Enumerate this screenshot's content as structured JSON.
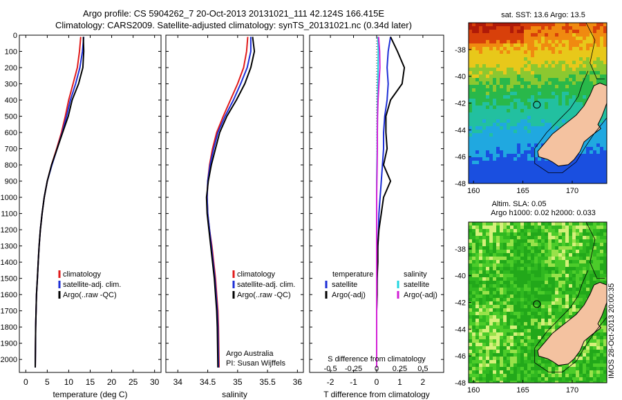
{
  "header": {
    "line1": "Argo profile: CS 5904262_7 20-Oct-2013 20131021_111 42.124S 166.415E",
    "line2": "Climatology: CARS2009. Satellite-adjusted climatology: synTS_20131021.nc (0.34d later)"
  },
  "colors": {
    "climatology": "#e01a1a",
    "satellite": "#1c2ed6",
    "argo": "#000000",
    "salinity_sat": "#22d6e0",
    "salinity_argo": "#d21fd6"
  },
  "chart_data": [
    {
      "type": "line",
      "name": "temperature",
      "xlabel": "temperature (deg C)",
      "ylabel": "",
      "xlim": [
        -1.5,
        31.5
      ],
      "ylim": [
        0,
        2080
      ],
      "xticks": [
        0,
        5,
        10,
        15,
        20,
        25,
        30
      ],
      "yticks": [
        0,
        100,
        200,
        300,
        400,
        500,
        600,
        700,
        800,
        900,
        1000,
        1100,
        1200,
        1300,
        1400,
        1500,
        1600,
        1700,
        1800,
        1900,
        2000
      ],
      "legend": [
        "climatology",
        "satellite-adj. clim.",
        "Argo(..raw -QC)"
      ],
      "legend_position": "lower-center",
      "series": [
        {
          "name": "climatology",
          "x": [
            12.8,
            12.5,
            12.0,
            11.0,
            10.0,
            9.2,
            8.3,
            7.2,
            6.0,
            5.0,
            4.3,
            3.8,
            3.4,
            3.1,
            2.9,
            2.7,
            2.5,
            2.4,
            2.3,
            2.2
          ],
          "y": [
            10,
            100,
            200,
            300,
            400,
            500,
            600,
            700,
            800,
            900,
            1000,
            1100,
            1200,
            1300,
            1400,
            1500,
            1600,
            1700,
            1800,
            2050
          ]
        },
        {
          "name": "satellite-adj. clim.",
          "x": [
            13.5,
            13.2,
            12.6,
            11.6,
            10.4,
            9.5,
            8.5,
            7.3,
            6.1,
            5.0,
            4.3,
            3.8,
            3.4,
            3.1,
            2.9,
            2.7,
            2.5,
            2.4,
            2.3,
            2.2
          ],
          "y": [
            10,
            100,
            200,
            300,
            400,
            500,
            600,
            700,
            800,
            900,
            1000,
            1100,
            1200,
            1300,
            1400,
            1500,
            1600,
            1700,
            1800,
            2050
          ]
        },
        {
          "name": "Argo(..raw -QC)",
          "x": [
            13.4,
            13.5,
            13.3,
            12.3,
            10.8,
            9.9,
            8.6,
            7.3,
            6.0,
            5.0,
            4.3,
            3.8,
            3.4,
            3.1,
            2.9,
            2.7,
            2.5,
            2.4,
            2.3,
            2.2
          ],
          "y": [
            10,
            100,
            200,
            300,
            400,
            500,
            600,
            700,
            800,
            900,
            1000,
            1100,
            1200,
            1300,
            1400,
            1500,
            1600,
            1700,
            1800,
            2050
          ]
        }
      ]
    },
    {
      "type": "line",
      "name": "salinity",
      "xlabel": "salinity",
      "xlim": [
        33.8,
        36.1
      ],
      "ylim": [
        0,
        2080
      ],
      "xticks": [
        34,
        34.5,
        35,
        35.5,
        36
      ],
      "legend": [
        "climatology",
        "satellite-adj. clim.",
        "Argo(..raw -QC)"
      ],
      "legend_position": "lower-center",
      "annotation": [
        "Argo Australia",
        "PI: Susan Wijffels"
      ],
      "series": [
        {
          "name": "climatology",
          "x": [
            35.17,
            35.15,
            35.1,
            35.0,
            34.88,
            34.76,
            34.65,
            34.58,
            34.53,
            34.5,
            34.49,
            34.5,
            34.53,
            34.57,
            34.6,
            34.63,
            34.65,
            34.67,
            34.68,
            34.69
          ],
          "y": [
            10,
            100,
            200,
            300,
            400,
            500,
            600,
            700,
            800,
            900,
            1000,
            1100,
            1200,
            1300,
            1400,
            1500,
            1600,
            1700,
            1800,
            2050
          ]
        },
        {
          "name": "satellite-adj. clim.",
          "x": [
            35.22,
            35.22,
            35.16,
            35.05,
            34.93,
            34.79,
            34.67,
            34.6,
            34.54,
            34.5,
            34.49,
            34.5,
            34.53,
            34.56,
            34.59,
            34.62,
            34.64,
            34.66,
            34.67,
            34.68
          ],
          "y": [
            10,
            100,
            200,
            300,
            400,
            500,
            600,
            700,
            800,
            900,
            1000,
            1100,
            1200,
            1300,
            1400,
            1500,
            1600,
            1700,
            1800,
            2050
          ]
        },
        {
          "name": "Argo(..raw -QC)",
          "x": [
            35.25,
            35.28,
            35.22,
            35.12,
            34.98,
            34.82,
            34.7,
            34.63,
            34.56,
            34.51,
            34.48,
            34.49,
            34.52,
            34.55,
            34.58,
            34.61,
            34.63,
            34.65,
            34.66,
            34.67
          ],
          "y": [
            10,
            100,
            200,
            300,
            400,
            500,
            600,
            700,
            800,
            900,
            1000,
            1100,
            1200,
            1300,
            1400,
            1500,
            1600,
            1700,
            1800,
            2050
          ]
        }
      ]
    },
    {
      "type": "line",
      "name": "difference",
      "xlabel": "T difference from climatology",
      "xlabel_top": "S difference from climatology",
      "xlim": [
        -2.9,
        2.9
      ],
      "ylim": [
        0,
        2080
      ],
      "xticks": [
        -2,
        -1,
        0,
        1,
        2
      ],
      "xticklabels": [
        "-2",
        "-1",
        "0",
        "1",
        "2"
      ],
      "top_xticks": [
        -0.5,
        -0.25,
        0,
        0.25,
        0.5
      ],
      "legend_headers": [
        "temperature",
        "salinity"
      ],
      "legend": [
        "satellite",
        "Argo(-adj)",
        "satellite",
        "Argo(-adj)"
      ],
      "legend_position": "lower-center",
      "series": [
        {
          "name": "temperature satellite",
          "x": [
            0.6,
            0.5,
            0.45,
            0.5,
            0.45,
            0.35,
            0.3,
            0.3,
            0.25,
            0.2,
            0.15,
            0.1,
            0.08,
            0.05,
            0.03,
            0.02,
            0.01,
            0.0,
            0.0,
            0.0
          ],
          "y": [
            10,
            100,
            200,
            300,
            400,
            500,
            600,
            700,
            800,
            900,
            1000,
            1100,
            1200,
            1300,
            1400,
            1500,
            1600,
            1700,
            1800,
            2050
          ]
        },
        {
          "name": "temperature Argo(-adj)",
          "x": [
            0.6,
            0.9,
            1.2,
            1.1,
            0.6,
            0.4,
            0.4,
            0.45,
            0.3,
            0.6,
            0.3,
            0.2,
            0.1,
            0.05,
            0.05,
            0.02,
            0.02,
            0.0,
            0.0,
            0.0
          ],
          "y": [
            10,
            100,
            200,
            300,
            400,
            500,
            600,
            700,
            800,
            900,
            1000,
            1100,
            1200,
            1300,
            1400,
            1500,
            1600,
            1700,
            1800,
            2050
          ]
        },
        {
          "name": "salinity satellite",
          "x": [
            0.05,
            0.07,
            0.06,
            0.05,
            0.04,
            0.03,
            0.02,
            0.02,
            0.01,
            0.0,
            0.0,
            0.0,
            0.0,
            0.0,
            0.0,
            0.0,
            0.0,
            0.0,
            0.0,
            0.0
          ],
          "y": [
            10,
            100,
            200,
            300,
            400,
            500,
            600,
            700,
            800,
            900,
            1000,
            1100,
            1200,
            1300,
            1400,
            1500,
            1600,
            1700,
            1800,
            2050
          ]
        },
        {
          "name": "salinity Argo(-adj)",
          "x": [
            0.08,
            0.13,
            0.14,
            0.1,
            0.06,
            0.04,
            0.03,
            0.03,
            0.02,
            0.01,
            0.0,
            0.0,
            0.0,
            0.0,
            0.0,
            0.0,
            0.0,
            0.0,
            0.0,
            0.0
          ],
          "y": [
            10,
            100,
            200,
            300,
            400,
            500,
            600,
            700,
            800,
            900,
            1000,
            1100,
            1200,
            1300,
            1400,
            1500,
            1600,
            1700,
            1800,
            2050
          ]
        }
      ]
    },
    {
      "type": "heatmap",
      "name": "sst-map",
      "title": "sat. SST: 13.6  Argo: 13.5",
      "xlim": [
        159.5,
        173.5
      ],
      "ylim": [
        -48,
        -36
      ],
      "xticks": [
        160,
        165,
        170
      ],
      "yticks": [
        -38,
        -40,
        -42,
        -44,
        -46,
        -48
      ],
      "profile_marker": {
        "lon": 166.415,
        "lat": -42.124
      }
    },
    {
      "type": "heatmap",
      "name": "sla-map",
      "title": "Altim. SLA: 0.05",
      "subtitle": "Argo h1000: 0.02 h2000: 0.033",
      "xlim": [
        159.5,
        173.5
      ],
      "ylim": [
        -48,
        -36
      ],
      "xticks": [
        160,
        165,
        170
      ],
      "yticks": [
        -38,
        -40,
        -42,
        -44,
        -46,
        -48
      ],
      "profile_marker": {
        "lon": 166.415,
        "lat": -42.124
      }
    }
  ],
  "stamp": "IMOS 28-Oct-2013 20:00:35"
}
